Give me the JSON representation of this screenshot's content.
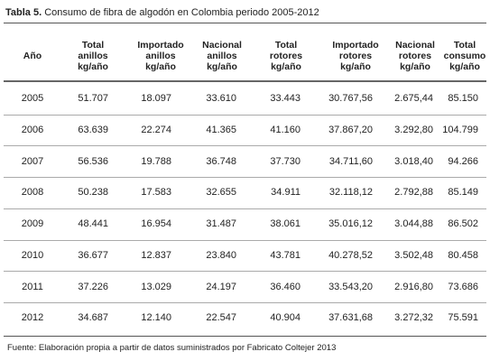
{
  "title": {
    "label": "Tabla 5.",
    "text": "Consumo de fibra de algodón en Colombia periodo 2005-2012"
  },
  "table": {
    "header": [
      [
        "Año"
      ],
      [
        "Total",
        "anillos",
        "kg/año"
      ],
      [
        "Importado",
        "anillos",
        "kg/año"
      ],
      [
        "Nacional",
        "anillos",
        "kg/año"
      ],
      [
        "Total",
        "rotores",
        "kg/año"
      ],
      [
        "Importado",
        "rotores",
        "kg/año"
      ],
      [
        "Nacional",
        "rotores",
        "kg/año"
      ],
      [
        "Total",
        "consumo",
        "kg/año"
      ]
    ],
    "rows": [
      [
        "2005",
        "51.707",
        "18.097",
        "33.610",
        "33.443",
        "30.767,56",
        "2.675,44",
        "85.150"
      ],
      [
        "2006",
        "63.639",
        "22.274",
        "41.365",
        "41.160",
        "37.867,20",
        "3.292,80",
        "104.799"
      ],
      [
        "2007",
        "56.536",
        "19.788",
        "36.748",
        "37.730",
        "34.711,60",
        "3.018,40",
        "94.266"
      ],
      [
        "2008",
        "50.238",
        "17.583",
        "32.655",
        "34.911",
        "32.118,12",
        "2.792,88",
        "85.149"
      ],
      [
        "2009",
        "48.441",
        "16.954",
        "31.487",
        "38.061",
        "35.016,12",
        "3.044,88",
        "86.502"
      ],
      [
        "2010",
        "36.677",
        "12.837",
        "23.840",
        "43.781",
        "40.278,52",
        "3.502,48",
        "80.458"
      ],
      [
        "2011",
        "37.226",
        "13.029",
        "24.197",
        "36.460",
        "33.543,20",
        "2.916,80",
        "73.686"
      ],
      [
        "2012",
        "34.687",
        "12.140",
        "22.547",
        "40.904",
        "37.631,68",
        "3.272,32",
        "75.591"
      ]
    ]
  },
  "footnote": "Fuente: Elaboración propia a partir de datos suministrados por Fabricato Coltejer 2013"
}
